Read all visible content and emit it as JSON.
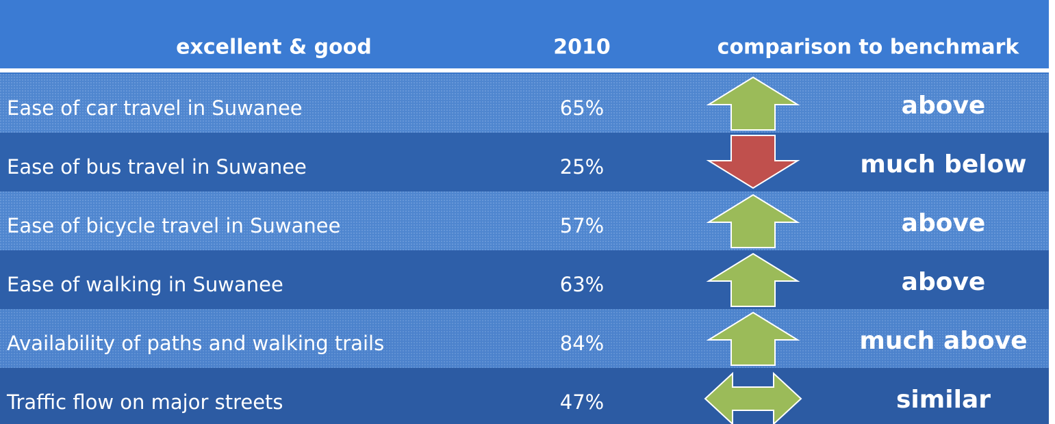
{
  "table": {
    "header": [
      "excellent & good",
      "2010",
      "comparison to benchmark"
    ],
    "rows": [
      [
        "Ease of car travel in Suwanee",
        "65%",
        "above"
      ],
      [
        "Ease of bus travel in Suwanee",
        "25%",
        "much below"
      ],
      [
        "Ease of bicycle travel in Suwanee",
        "57%",
        "above"
      ],
      [
        "Ease of walking in Suwanee",
        "63%",
        "above"
      ],
      [
        "Availability of paths and walking trails",
        "84%",
        "much above"
      ],
      [
        "Traffic flow on major streets",
        "47%",
        "similar"
      ]
    ]
  }
}
